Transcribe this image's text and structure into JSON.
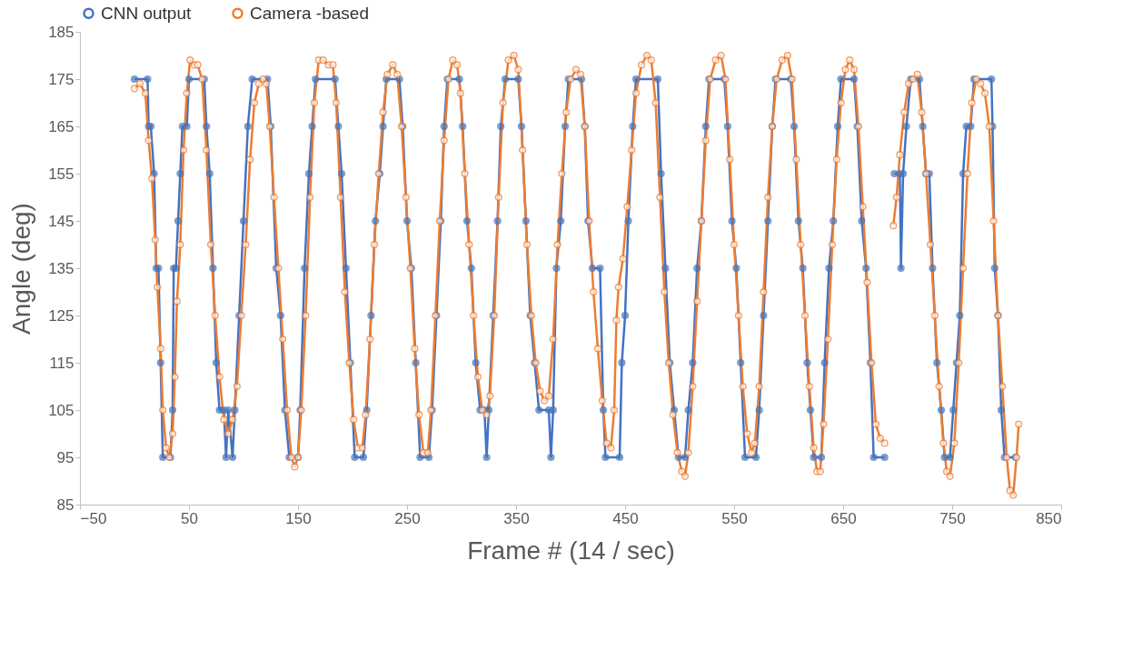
{
  "chart_data": {
    "type": "line",
    "xlabel": "Frame # (14 / sec)",
    "ylabel": "Angle (deg)",
    "xlim": [
      -50,
      850
    ],
    "xticks": [
      -50,
      50,
      150,
      250,
      350,
      450,
      550,
      650,
      750,
      850
    ],
    "ylim": [
      85,
      185
    ],
    "yticks": [
      85,
      95,
      105,
      115,
      125,
      135,
      145,
      155,
      165,
      175,
      185
    ],
    "grid": false,
    "legend": "top left",
    "marker": "circle",
    "line_style": "solid",
    "series": [
      {
        "name": "CNN output",
        "color": "#4472c4",
        "x": [
          0,
          12,
          13,
          15,
          18,
          20,
          22,
          24,
          26,
          33,
          35,
          36,
          38,
          40,
          42,
          44,
          48,
          50,
          64,
          66,
          69,
          72,
          75,
          78,
          82,
          84,
          86,
          90,
          92,
          96,
          100,
          104,
          108,
          122,
          125,
          130,
          134,
          138,
          142,
          150,
          152,
          156,
          160,
          163,
          166,
          184,
          187,
          190,
          194,
          198,
          202,
          210,
          213,
          217,
          221,
          225,
          228,
          231,
          243,
          246,
          250,
          254,
          258,
          262,
          270,
          273,
          277,
          281,
          284,
          287,
          298,
          301,
          305,
          309,
          313,
          317,
          321,
          323,
          325,
          329,
          333,
          336,
          340,
          352,
          355,
          359,
          363,
          367,
          371,
          380,
          382,
          384,
          387,
          391,
          395,
          398,
          410,
          413,
          416,
          420,
          427,
          430,
          432,
          445,
          447,
          450,
          453,
          457,
          460,
          480,
          483,
          487,
          491,
          495,
          499,
          505,
          508,
          512,
          516,
          520,
          524,
          527,
          541,
          544,
          548,
          552,
          556,
          560,
          570,
          573,
          577,
          581,
          585,
          588,
          602,
          605,
          609,
          613,
          617,
          620,
          623,
          630,
          633,
          637,
          641,
          645,
          648,
          660,
          663,
          667,
          671,
          675,
          678,
          688,
          693,
          697,
          702,
          703,
          705,
          708,
          712,
          720,
          723,
          726,
          729,
          732,
          736,
          740,
          743,
          748,
          751,
          754,
          757,
          760,
          763,
          767,
          770,
          786,
          787,
          789,
          792,
          795,
          798,
          808
        ],
        "values": [
          175,
          175,
          165,
          165,
          155,
          135,
          135,
          115,
          95,
          95,
          105,
          135,
          135,
          145,
          155,
          165,
          165,
          175,
          175,
          165,
          155,
          135,
          115,
          105,
          105,
          95,
          105,
          95,
          105,
          125,
          145,
          165,
          175,
          175,
          165,
          135,
          125,
          105,
          95,
          95,
          105,
          135,
          155,
          165,
          175,
          175,
          165,
          155,
          135,
          115,
          95,
          95,
          105,
          125,
          145,
          155,
          165,
          175,
          175,
          165,
          145,
          135,
          115,
          95,
          95,
          105,
          125,
          145,
          165,
          175,
          175,
          165,
          145,
          135,
          115,
          105,
          105,
          95,
          105,
          125,
          145,
          165,
          175,
          175,
          165,
          145,
          125,
          115,
          105,
          105,
          95,
          105,
          135,
          145,
          165,
          175,
          175,
          165,
          145,
          135,
          135,
          105,
          95,
          95,
          115,
          125,
          145,
          165,
          175,
          175,
          155,
          135,
          115,
          105,
          95,
          95,
          105,
          115,
          135,
          145,
          165,
          175,
          175,
          165,
          145,
          135,
          115,
          95,
          95,
          105,
          125,
          145,
          165,
          175,
          175,
          165,
          145,
          135,
          115,
          105,
          95,
          95,
          115,
          135,
          145,
          165,
          175,
          175,
          165,
          145,
          135,
          115,
          95,
          95,
          null,
          155,
          155,
          135,
          155,
          165,
          175,
          175,
          165,
          155,
          155,
          135,
          115,
          105,
          95,
          95,
          105,
          115,
          125,
          155,
          165,
          165,
          175,
          175,
          165,
          135,
          125,
          105,
          95,
          95
        ]
      },
      {
        "name": "Camera -based",
        "color": "#ed7d31",
        "x": [
          0,
          5,
          10,
          13,
          16,
          19,
          21,
          24,
          26,
          29,
          32,
          35,
          37,
          39,
          42,
          45,
          48,
          51,
          55,
          58,
          62,
          66,
          70,
          74,
          78,
          82,
          86,
          90,
          94,
          98,
          102,
          106,
          110,
          114,
          118,
          121,
          124,
          128,
          132,
          136,
          140,
          144,
          147,
          150,
          153,
          157,
          161,
          165,
          169,
          173,
          178,
          182,
          185,
          189,
          193,
          197,
          201,
          205,
          209,
          212,
          216,
          220,
          224,
          228,
          232,
          237,
          241,
          245,
          249,
          253,
          257,
          261,
          265,
          269,
          272,
          276,
          280,
          284,
          288,
          292,
          296,
          299,
          303,
          307,
          311,
          315,
          319,
          323,
          326,
          330,
          334,
          338,
          343,
          348,
          352,
          356,
          360,
          364,
          368,
          372,
          376,
          380,
          384,
          388,
          392,
          396,
          400,
          405,
          409,
          413,
          417,
          421,
          425,
          429,
          433,
          437,
          440,
          442,
          444,
          448,
          452,
          456,
          460,
          465,
          470,
          474,
          478,
          482,
          486,
          490,
          494,
          498,
          502,
          505,
          508,
          512,
          516,
          520,
          524,
          528,
          533,
          538,
          542,
          546,
          550,
          554,
          558,
          562,
          566,
          569,
          573,
          577,
          581,
          585,
          589,
          594,
          599,
          603,
          607,
          611,
          615,
          619,
          623,
          626,
          629,
          632,
          636,
          640,
          644,
          648,
          652,
          656,
          660,
          664,
          668,
          672,
          676,
          680,
          684,
          688,
          692,
          696,
          699,
          702,
          706,
          710,
          714,
          718,
          722,
          726,
          730,
          734,
          738,
          742,
          745,
          748,
          752,
          756,
          760,
          764,
          768,
          772,
          776,
          780,
          784,
          788,
          792,
          796,
          800,
          803,
          806,
          809,
          811
        ],
        "values": [
          173,
          174,
          172,
          162,
          154,
          141,
          131,
          118,
          105,
          97,
          95,
          100,
          112,
          128,
          140,
          160,
          172,
          179,
          178,
          178,
          175,
          160,
          140,
          125,
          112,
          103,
          100,
          103,
          110,
          125,
          140,
          158,
          170,
          174,
          175,
          174,
          165,
          150,
          135,
          120,
          105,
          95,
          93,
          95,
          105,
          125,
          150,
          170,
          179,
          179,
          178,
          178,
          170,
          150,
          130,
          115,
          103,
          97,
          97,
          104,
          120,
          140,
          155,
          168,
          176,
          178,
          176,
          165,
          150,
          135,
          118,
          104,
          96,
          96,
          105,
          125,
          145,
          162,
          175,
          179,
          178,
          172,
          155,
          140,
          125,
          112,
          105,
          104,
          108,
          125,
          150,
          170,
          179,
          180,
          177,
          160,
          140,
          125,
          115,
          109,
          107,
          108,
          120,
          140,
          155,
          168,
          175,
          177,
          176,
          165,
          145,
          130,
          118,
          107,
          98,
          97,
          105,
          124,
          131,
          137,
          148,
          160,
          172,
          178,
          180,
          179,
          170,
          150,
          130,
          115,
          104,
          96,
          92,
          91,
          96,
          110,
          128,
          145,
          162,
          175,
          179,
          180,
          175,
          158,
          140,
          125,
          110,
          100,
          96,
          98,
          110,
          130,
          150,
          165,
          175,
          179,
          180,
          175,
          158,
          140,
          125,
          110,
          97,
          92,
          92,
          102,
          120,
          140,
          158,
          170,
          177,
          179,
          177,
          165,
          148,
          132,
          115,
          102,
          99,
          98,
          null,
          144,
          150,
          159,
          168,
          174,
          175,
          176,
          168,
          155,
          140,
          125,
          110,
          98,
          92,
          91,
          98,
          115,
          135,
          155,
          170,
          175,
          174,
          172,
          165,
          145,
          125,
          110,
          95,
          88,
          87,
          95,
          102
        ]
      }
    ]
  }
}
